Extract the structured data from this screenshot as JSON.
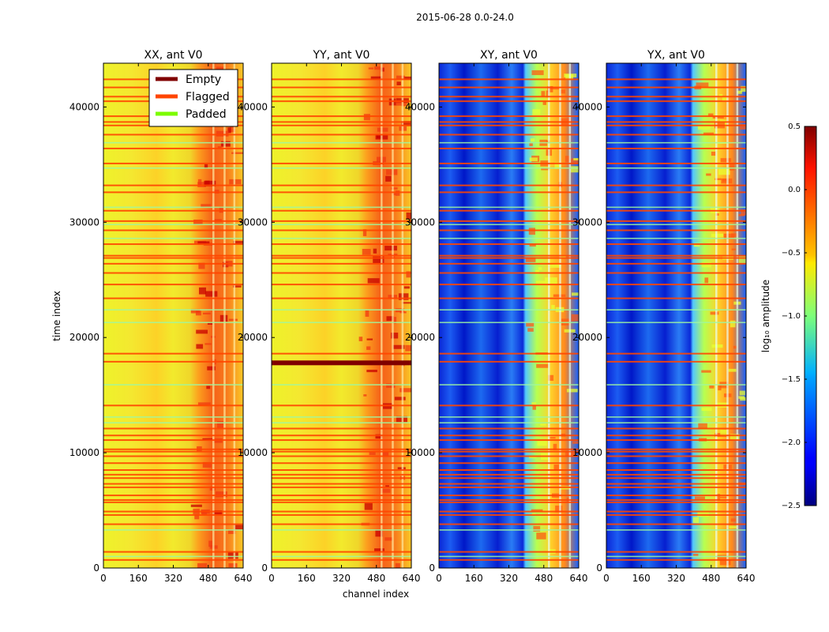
{
  "figure": {
    "title": "2015-06-28 0.0-24.0",
    "xlabel": "channel index",
    "ylabel": "time index"
  },
  "chart_data": [
    {
      "type": "heatmap",
      "title": "XX, ant V0",
      "xlim": [
        0,
        640
      ],
      "ylim": [
        0,
        43800
      ],
      "xticks": [
        0,
        160,
        320,
        480,
        640
      ],
      "yticks": [
        0,
        10000,
        20000,
        30000,
        40000
      ],
      "scheme": "warm",
      "signal_channels": [
        400,
        620
      ],
      "dark_band": null
    },
    {
      "type": "heatmap",
      "title": "YY, ant V0",
      "xlim": [
        0,
        640
      ],
      "ylim": [
        0,
        43800
      ],
      "xticks": [
        0,
        160,
        320,
        480,
        640
      ],
      "yticks": [
        0,
        10000,
        20000,
        30000,
        40000
      ],
      "scheme": "warm",
      "signal_channels": [
        400,
        640
      ],
      "dark_band": 17800
    },
    {
      "type": "heatmap",
      "title": "XY, ant V0",
      "xlim": [
        0,
        640
      ],
      "ylim": [
        0,
        43800
      ],
      "xticks": [
        0,
        160,
        320,
        480,
        640
      ],
      "yticks": [
        0,
        10000,
        20000,
        30000,
        40000
      ],
      "scheme": "cool",
      "signal_channels": [
        395,
        640
      ],
      "dark_band": null
    },
    {
      "type": "heatmap",
      "title": "YX, ant V0",
      "xlim": [
        0,
        640
      ],
      "ylim": [
        0,
        43800
      ],
      "xticks": [
        0,
        160,
        320,
        480,
        640
      ],
      "yticks": [
        0,
        10000,
        20000,
        30000,
        40000
      ],
      "scheme": "cool",
      "signal_channels": [
        395,
        640
      ],
      "dark_band": null
    }
  ],
  "legend": {
    "placement": "top-right of first panel",
    "entries": [
      {
        "label": "Empty",
        "color": "#800000"
      },
      {
        "label": "Flagged",
        "color": "#ff4500"
      },
      {
        "label": "Padded",
        "color": "#7cfc00"
      }
    ]
  },
  "flagged_rows": [
    700,
    1400,
    3800,
    4600,
    4900,
    5700,
    5900,
    6300,
    7000,
    7300,
    7800,
    8100,
    8500,
    9100,
    9700,
    10100,
    10300,
    11100,
    11500,
    12100,
    14100,
    17900,
    18600,
    23400,
    24600,
    25600,
    26400,
    26900,
    27100,
    28100,
    29300,
    30100,
    31000,
    32600,
    33200,
    35100,
    36400,
    37600,
    38400,
    38700,
    39200,
    40500,
    40900,
    41700,
    42400
  ],
  "padded_rows": [
    1000,
    3300,
    12600,
    13100,
    15900,
    21300,
    22400,
    28600,
    29800,
    31300,
    34700,
    36900
  ],
  "colorbar": {
    "label": "log₁₀ amplitude",
    "min": -2.5,
    "max": 0.5,
    "ticks": [
      "0.5",
      "0.0",
      "−0.5",
      "−1.0",
      "−1.5",
      "−2.0",
      "−2.5"
    ],
    "tick_values": [
      0.5,
      0.0,
      -0.5,
      -1.0,
      -1.5,
      -2.0,
      -2.5
    ]
  }
}
